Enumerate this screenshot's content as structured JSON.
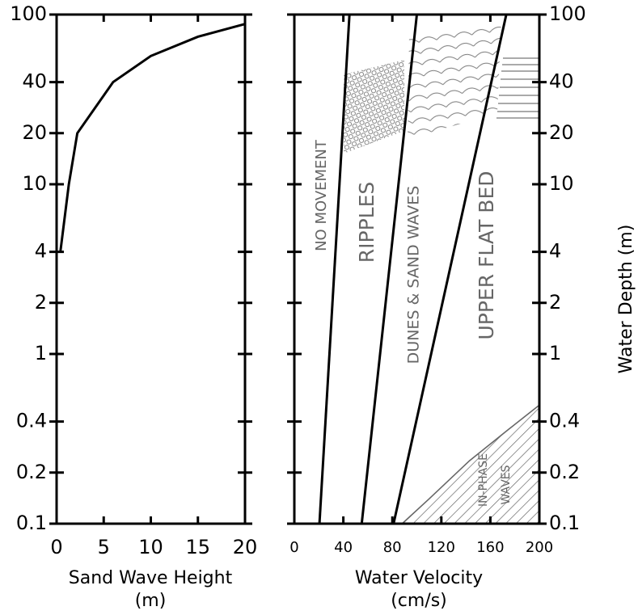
{
  "chart_data": [
    {
      "type": "line",
      "yscale": "log",
      "xlabel": [
        "Sand Wave Height",
        "(m)"
      ],
      "xlim": [
        0,
        20
      ],
      "xticks": [
        0,
        5,
        10,
        15,
        20
      ],
      "ylim": [
        0.1,
        100
      ],
      "yticks": [
        0.1,
        0.2,
        0.4,
        1,
        2,
        4,
        10,
        20,
        40,
        100
      ],
      "series": [
        {
          "color": "#000000",
          "x": [
            0.4,
            1.3,
            2.2,
            6,
            10,
            15,
            20
          ],
          "values": [
            4,
            10,
            20,
            40,
            57,
            74,
            88
          ]
        }
      ]
    },
    {
      "type": "line",
      "yscale": "log",
      "xlabel": [
        "Water Velocity",
        "(cm/s)"
      ],
      "ylabel": "Water Depth (m)",
      "xlim": [
        0,
        200
      ],
      "xticks": [
        0,
        40,
        80,
        120,
        160,
        200
      ],
      "ylim": [
        0.1,
        100
      ],
      "yticks": [
        0.1,
        0.2,
        0.4,
        1,
        2,
        4,
        10,
        20,
        40,
        100
      ],
      "series": [
        {
          "color": "#000000",
          "x": [
            20.5,
            45
          ],
          "values": [
            0.1,
            100
          ]
        },
        {
          "color": "#000000",
          "x": [
            55,
            100
          ],
          "values": [
            0.1,
            100
          ]
        },
        {
          "color": "#000000",
          "x": [
            81,
            173
          ],
          "values": [
            0.1,
            100
          ]
        },
        {
          "color": "#666666",
          "hatch": true,
          "x": [
            88,
            110,
            143,
            175,
            200
          ],
          "values": [
            0.1,
            0.14,
            0.235,
            0.36,
            0.5
          ]
        }
      ],
      "annotations": [
        "NO MOVEMENT",
        "RIPPLES",
        "DUNES & SAND WAVES",
        "UPPER FLAT BED",
        "IN-PHASE",
        "WAVES"
      ]
    }
  ]
}
